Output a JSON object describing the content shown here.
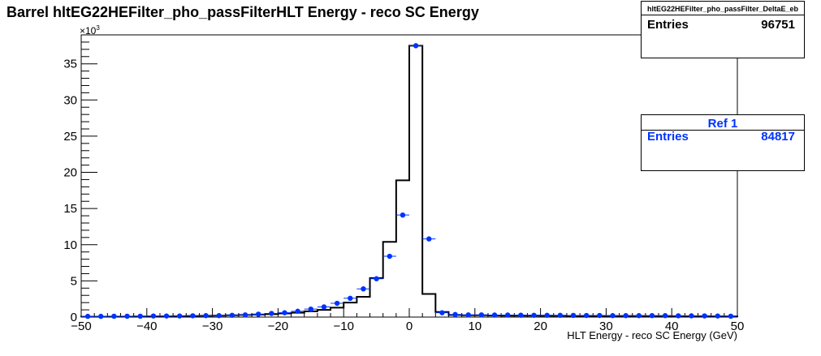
{
  "chart_data": {
    "type": "histogram",
    "title": "Barrel hltEG22HEFilter_pho_passFilterHLT Energy - reco SC Energy",
    "xlabel": "HLT Energy - reco SC Energy (GeV)",
    "ylabel": "",
    "y_exponent_label": "×10",
    "y_exponent_power": "3",
    "xlim": [
      -50,
      50
    ],
    "ylim": [
      0,
      39
    ],
    "x_ticks": [
      -50,
      -40,
      -30,
      -20,
      -10,
      0,
      10,
      20,
      30,
      40,
      50
    ],
    "x_tick_labels": [
      "−50",
      "−40",
      "−30",
      "−20",
      "−10",
      "0",
      "10",
      "20",
      "30",
      "40",
      "50"
    ],
    "y_ticks": [
      0,
      5,
      10,
      15,
      20,
      25,
      30,
      35
    ],
    "y_tick_labels": [
      "0",
      "5",
      "10",
      "15",
      "20",
      "25",
      "30",
      "35"
    ],
    "grid": false,
    "colors": {
      "line": "#000000",
      "ref": "#0033ff"
    },
    "bin_edges": [
      -50,
      -48,
      -46,
      -44,
      -42,
      -40,
      -38,
      -36,
      -34,
      -32,
      -30,
      -28,
      -26,
      -24,
      -22,
      -20,
      -18,
      -16,
      -14,
      -12,
      -10,
      -8,
      -6,
      -4,
      -2,
      0,
      2,
      4,
      6,
      8,
      10,
      12,
      14,
      16,
      18,
      20,
      22,
      24,
      26,
      28,
      30,
      32,
      34,
      36,
      38,
      40,
      42,
      44,
      46,
      48,
      50
    ],
    "series": [
      {
        "name": "hltEG22HEFilter_pho_passFilter_DeltaE_eb",
        "style": "step",
        "values": [
          0.05,
          0.05,
          0.05,
          0.05,
          0.08,
          0.08,
          0.1,
          0.12,
          0.15,
          0.18,
          0.2,
          0.25,
          0.3,
          0.35,
          0.4,
          0.5,
          0.6,
          0.8,
          1.0,
          1.3,
          2.0,
          2.8,
          5.4,
          10.4,
          18.9,
          37.5,
          3.2,
          0.7,
          0.3,
          0.25,
          0.25,
          0.22,
          0.2,
          0.2,
          0.2,
          0.18,
          0.18,
          0.17,
          0.16,
          0.15,
          0.15,
          0.15,
          0.15,
          0.14,
          0.14,
          0.13,
          0.12,
          0.12,
          0.1,
          0.1
        ]
      },
      {
        "name": "Ref 1",
        "style": "markers",
        "values": [
          0.1,
          0.1,
          0.12,
          0.12,
          0.12,
          0.15,
          0.15,
          0.15,
          0.18,
          0.2,
          0.2,
          0.25,
          0.3,
          0.4,
          0.5,
          0.6,
          0.8,
          1.1,
          1.4,
          1.9,
          2.6,
          3.9,
          5.3,
          8.4,
          14.1,
          37.5,
          10.8,
          0.6,
          0.35,
          0.3,
          0.3,
          0.28,
          0.28,
          0.26,
          0.25,
          0.25,
          0.24,
          0.23,
          0.22,
          0.22,
          0.2,
          0.2,
          0.2,
          0.2,
          0.2,
          0.18,
          0.17,
          0.16,
          0.15,
          0.12
        ]
      }
    ]
  },
  "stats_boxes": [
    {
      "title": "hltEG22HEFilter_pho_passFilter_DeltaE_eb",
      "entries_label": "Entries",
      "entries_value": "96751",
      "color": "#000000"
    },
    {
      "title": "Ref 1",
      "entries_label": "Entries",
      "entries_value": "84817",
      "color": "#0033ff"
    }
  ]
}
